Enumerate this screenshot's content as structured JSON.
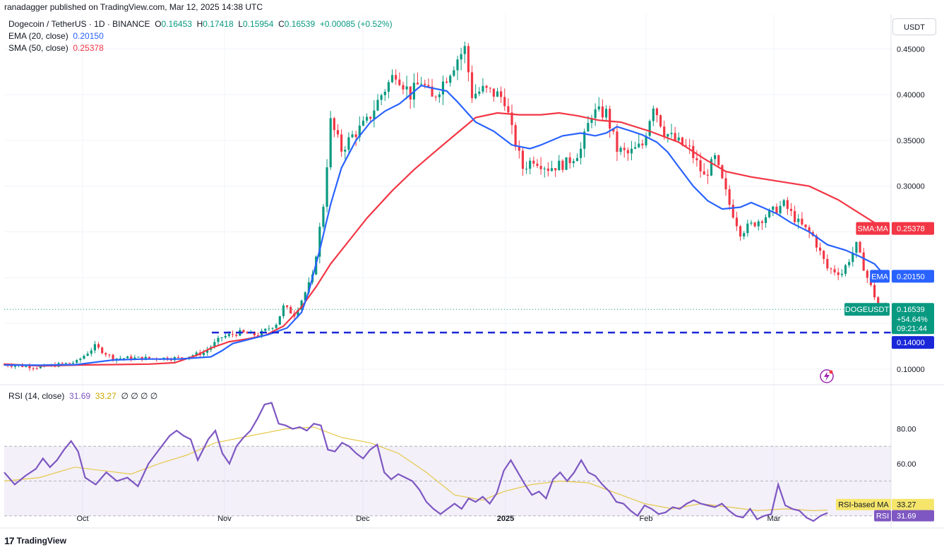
{
  "header": {
    "publisher": "ranadagger published on TradingView.com, Mar 12, 2025 14:38 UTC"
  },
  "legend": {
    "symbol": "Dogecoin / TetherUS · 1D · BINANCE",
    "o_label": "O",
    "o": "0.16453",
    "h_label": "H",
    "h": "0.17418",
    "l_label": "L",
    "l": "0.15954",
    "c_label": "C",
    "c": "0.16539",
    "change": "+0.00085 (+0.52%)",
    "ema_label": "EMA (20, close)",
    "ema_value": "0.20150",
    "sma_label": "SMA (50, close)",
    "sma_value": "0.25378"
  },
  "rsi_legend": {
    "label": "RSI (14, close)",
    "rsi": "31.69",
    "ma": "33.27",
    "extras": "∅ ∅ ∅ ∅"
  },
  "currency_button": "USDT",
  "footer": {
    "brand": "TradingView",
    "logo": "17"
  },
  "colors": {
    "up": "#089981",
    "down": "#f23645",
    "ema": "#2962ff",
    "sma": "#f23645",
    "rsi": "#7e57c2",
    "rsi_ma": "#e6c84a",
    "support": "#1a27d9"
  },
  "chart_data": {
    "type": "candlestick",
    "price_axis": {
      "ticks": [
        "0.45000",
        "0.40000",
        "0.35000",
        "0.30000",
        "0.10000"
      ],
      "range": [
        0.083,
        0.488
      ]
    },
    "time_axis": {
      "ticks": [
        "Oct",
        "Nov",
        "Dec",
        "2025",
        "Feb",
        "Mar"
      ]
    },
    "support_level": {
      "value": 0.14,
      "label": "0.14000"
    },
    "price_labels": {
      "sma": {
        "name": "SMA:MA",
        "value": "0.25378"
      },
      "ema": {
        "name": "EMA",
        "value": "0.20150"
      },
      "last": {
        "name": "DOGEUSDT",
        "value": "0.16539",
        "change": "+54.64%",
        "countdown": "09:21:44"
      }
    },
    "rsi_axis": {
      "ticks": [
        "80.00",
        "60.00"
      ],
      "range": [
        23,
        105
      ],
      "upper_band": 70,
      "lower_band": 30,
      "mid": 50
    },
    "rsi_labels": {
      "ma": {
        "name": "RSI-based MA",
        "value": "33.27"
      },
      "rsi": {
        "name": "RSI",
        "value": "31.69"
      }
    },
    "ema_points": [
      [
        0,
        0.1045
      ],
      [
        10,
        0.1043
      ],
      [
        20,
        0.105
      ],
      [
        25,
        0.1075
      ],
      [
        30,
        0.11
      ],
      [
        38,
        0.111
      ],
      [
        48,
        0.111
      ],
      [
        57,
        0.1135
      ],
      [
        60,
        0.12
      ],
      [
        63,
        0.128
      ],
      [
        68,
        0.133
      ],
      [
        73,
        0.138
      ],
      [
        78,
        0.145
      ],
      [
        82,
        0.162
      ],
      [
        84,
        0.185
      ],
      [
        87,
        0.23
      ],
      [
        90,
        0.28
      ],
      [
        93,
        0.32
      ],
      [
        97,
        0.35
      ],
      [
        101,
        0.37
      ],
      [
        105,
        0.382
      ],
      [
        109,
        0.39
      ],
      [
        112,
        0.4
      ],
      [
        115,
        0.41
      ],
      [
        117,
        0.408
      ],
      [
        122,
        0.404
      ],
      [
        125,
        0.392
      ],
      [
        130,
        0.37
      ],
      [
        135,
        0.36
      ],
      [
        140,
        0.345
      ],
      [
        145,
        0.341
      ],
      [
        148,
        0.345
      ],
      [
        154,
        0.355
      ],
      [
        159,
        0.358
      ],
      [
        163,
        0.355
      ],
      [
        166,
        0.358
      ],
      [
        169,
        0.365
      ],
      [
        173,
        0.36
      ],
      [
        176,
        0.356
      ],
      [
        180,
        0.348
      ],
      [
        183,
        0.337
      ],
      [
        186,
        0.321
      ],
      [
        190,
        0.3
      ],
      [
        194,
        0.284
      ],
      [
        198,
        0.275
      ],
      [
        203,
        0.277
      ],
      [
        206,
        0.282
      ],
      [
        209,
        0.277
      ],
      [
        213,
        0.27
      ],
      [
        217,
        0.26
      ],
      [
        222,
        0.25
      ],
      [
        227,
        0.236
      ],
      [
        232,
        0.23
      ],
      [
        236,
        0.223
      ],
      [
        240,
        0.215
      ],
      [
        243,
        0.2015
      ]
    ],
    "sma_points": [
      [
        0,
        0.1055
      ],
      [
        10,
        0.1035
      ],
      [
        20,
        0.1045
      ],
      [
        30,
        0.105
      ],
      [
        40,
        0.1055
      ],
      [
        47,
        0.107
      ],
      [
        53,
        0.115
      ],
      [
        57,
        0.123
      ],
      [
        62,
        0.13
      ],
      [
        67,
        0.133
      ],
      [
        72,
        0.137
      ],
      [
        77,
        0.147
      ],
      [
        82,
        0.168
      ],
      [
        86,
        0.19
      ],
      [
        90,
        0.215
      ],
      [
        95,
        0.24
      ],
      [
        100,
        0.265
      ],
      [
        107,
        0.295
      ],
      [
        113,
        0.318
      ],
      [
        118,
        0.335
      ],
      [
        124,
        0.355
      ],
      [
        130,
        0.375
      ],
      [
        136,
        0.38
      ],
      [
        142,
        0.378
      ],
      [
        148,
        0.378
      ],
      [
        153,
        0.38
      ],
      [
        158,
        0.377
      ],
      [
        164,
        0.372
      ],
      [
        170,
        0.37
      ],
      [
        178,
        0.36
      ],
      [
        186,
        0.348
      ],
      [
        193,
        0.33
      ],
      [
        199,
        0.316
      ],
      [
        206,
        0.31
      ],
      [
        214,
        0.305
      ],
      [
        222,
        0.3
      ],
      [
        230,
        0.285
      ],
      [
        236,
        0.27
      ],
      [
        240,
        0.26
      ],
      [
        243,
        0.2538
      ]
    ],
    "rsi_points": [
      [
        0,
        55
      ],
      [
        3,
        48
      ],
      [
        6,
        53
      ],
      [
        9,
        57
      ],
      [
        11,
        63
      ],
      [
        13,
        58
      ],
      [
        15,
        62
      ],
      [
        17,
        68
      ],
      [
        19,
        73
      ],
      [
        21,
        67
      ],
      [
        23,
        52
      ],
      [
        26,
        48
      ],
      [
        29,
        55
      ],
      [
        32,
        50
      ],
      [
        35,
        52
      ],
      [
        38,
        47
      ],
      [
        41,
        60
      ],
      [
        44,
        68
      ],
      [
        47,
        76
      ],
      [
        49,
        79
      ],
      [
        51,
        76
      ],
      [
        53,
        74
      ],
      [
        55,
        62
      ],
      [
        58,
        74
      ],
      [
        60,
        79
      ],
      [
        62,
        66
      ],
      [
        64,
        60
      ],
      [
        66,
        70
      ],
      [
        68,
        75
      ],
      [
        70,
        79
      ],
      [
        72,
        86
      ],
      [
        74,
        94
      ],
      [
        76,
        95
      ],
      [
        78,
        83
      ],
      [
        80,
        82
      ],
      [
        82,
        80
      ],
      [
        84,
        81
      ],
      [
        86,
        79
      ],
      [
        88,
        83
      ],
      [
        90,
        82
      ],
      [
        92,
        68
      ],
      [
        94,
        67
      ],
      [
        96,
        72
      ],
      [
        98,
        70
      ],
      [
        100,
        66
      ],
      [
        102,
        63
      ],
      [
        104,
        68
      ],
      [
        106,
        71
      ],
      [
        108,
        55
      ],
      [
        110,
        51
      ],
      [
        112,
        54
      ],
      [
        114,
        52
      ],
      [
        116,
        50
      ],
      [
        118,
        45
      ],
      [
        120,
        38
      ],
      [
        122,
        34
      ],
      [
        124,
        31
      ],
      [
        126,
        34
      ],
      [
        128,
        37
      ],
      [
        130,
        34
      ],
      [
        132,
        40
      ],
      [
        134,
        38
      ],
      [
        136,
        41
      ],
      [
        138,
        37
      ],
      [
        140,
        43
      ],
      [
        142,
        56
      ],
      [
        144,
        62
      ],
      [
        146,
        55
      ],
      [
        148,
        48
      ],
      [
        150,
        42
      ],
      [
        152,
        44
      ],
      [
        154,
        40
      ],
      [
        156,
        51
      ],
      [
        158,
        55
      ],
      [
        160,
        50
      ],
      [
        162,
        55
      ],
      [
        164,
        62
      ],
      [
        166,
        55
      ],
      [
        168,
        53
      ],
      [
        170,
        48
      ],
      [
        172,
        44
      ],
      [
        174,
        38
      ],
      [
        176,
        37
      ],
      [
        178,
        33
      ],
      [
        180,
        30
      ],
      [
        182,
        36
      ],
      [
        184,
        34
      ],
      [
        186,
        31
      ],
      [
        188,
        32
      ],
      [
        190,
        35
      ],
      [
        192,
        34
      ],
      [
        194,
        37
      ],
      [
        196,
        39
      ],
      [
        198,
        37
      ],
      [
        200,
        36
      ],
      [
        202,
        35
      ],
      [
        204,
        37
      ],
      [
        206,
        33
      ],
      [
        208,
        30
      ],
      [
        210,
        29
      ],
      [
        212,
        34
      ],
      [
        214,
        28
      ],
      [
        216,
        30
      ],
      [
        218,
        31
      ],
      [
        220,
        48
      ],
      [
        222,
        36
      ],
      [
        224,
        34
      ],
      [
        226,
        33
      ],
      [
        228,
        29
      ],
      [
        230,
        27
      ],
      [
        232,
        30
      ],
      [
        234,
        31.69
      ]
    ],
    "rsi_ma_points": [
      [
        0,
        50
      ],
      [
        10,
        52
      ],
      [
        20,
        58
      ],
      [
        28,
        56
      ],
      [
        36,
        54
      ],
      [
        44,
        60
      ],
      [
        52,
        65
      ],
      [
        60,
        72
      ],
      [
        70,
        76
      ],
      [
        80,
        80
      ],
      [
        88,
        81
      ],
      [
        96,
        75
      ],
      [
        104,
        72
      ],
      [
        112,
        66
      ],
      [
        120,
        55
      ],
      [
        128,
        42
      ],
      [
        136,
        39
      ],
      [
        142,
        44
      ],
      [
        150,
        48
      ],
      [
        158,
        50
      ],
      [
        166,
        49
      ],
      [
        174,
        43
      ],
      [
        182,
        37
      ],
      [
        190,
        34
      ],
      [
        198,
        37
      ],
      [
        206,
        35
      ],
      [
        214,
        33
      ],
      [
        222,
        34
      ],
      [
        230,
        33
      ],
      [
        234,
        33.27
      ]
    ]
  }
}
